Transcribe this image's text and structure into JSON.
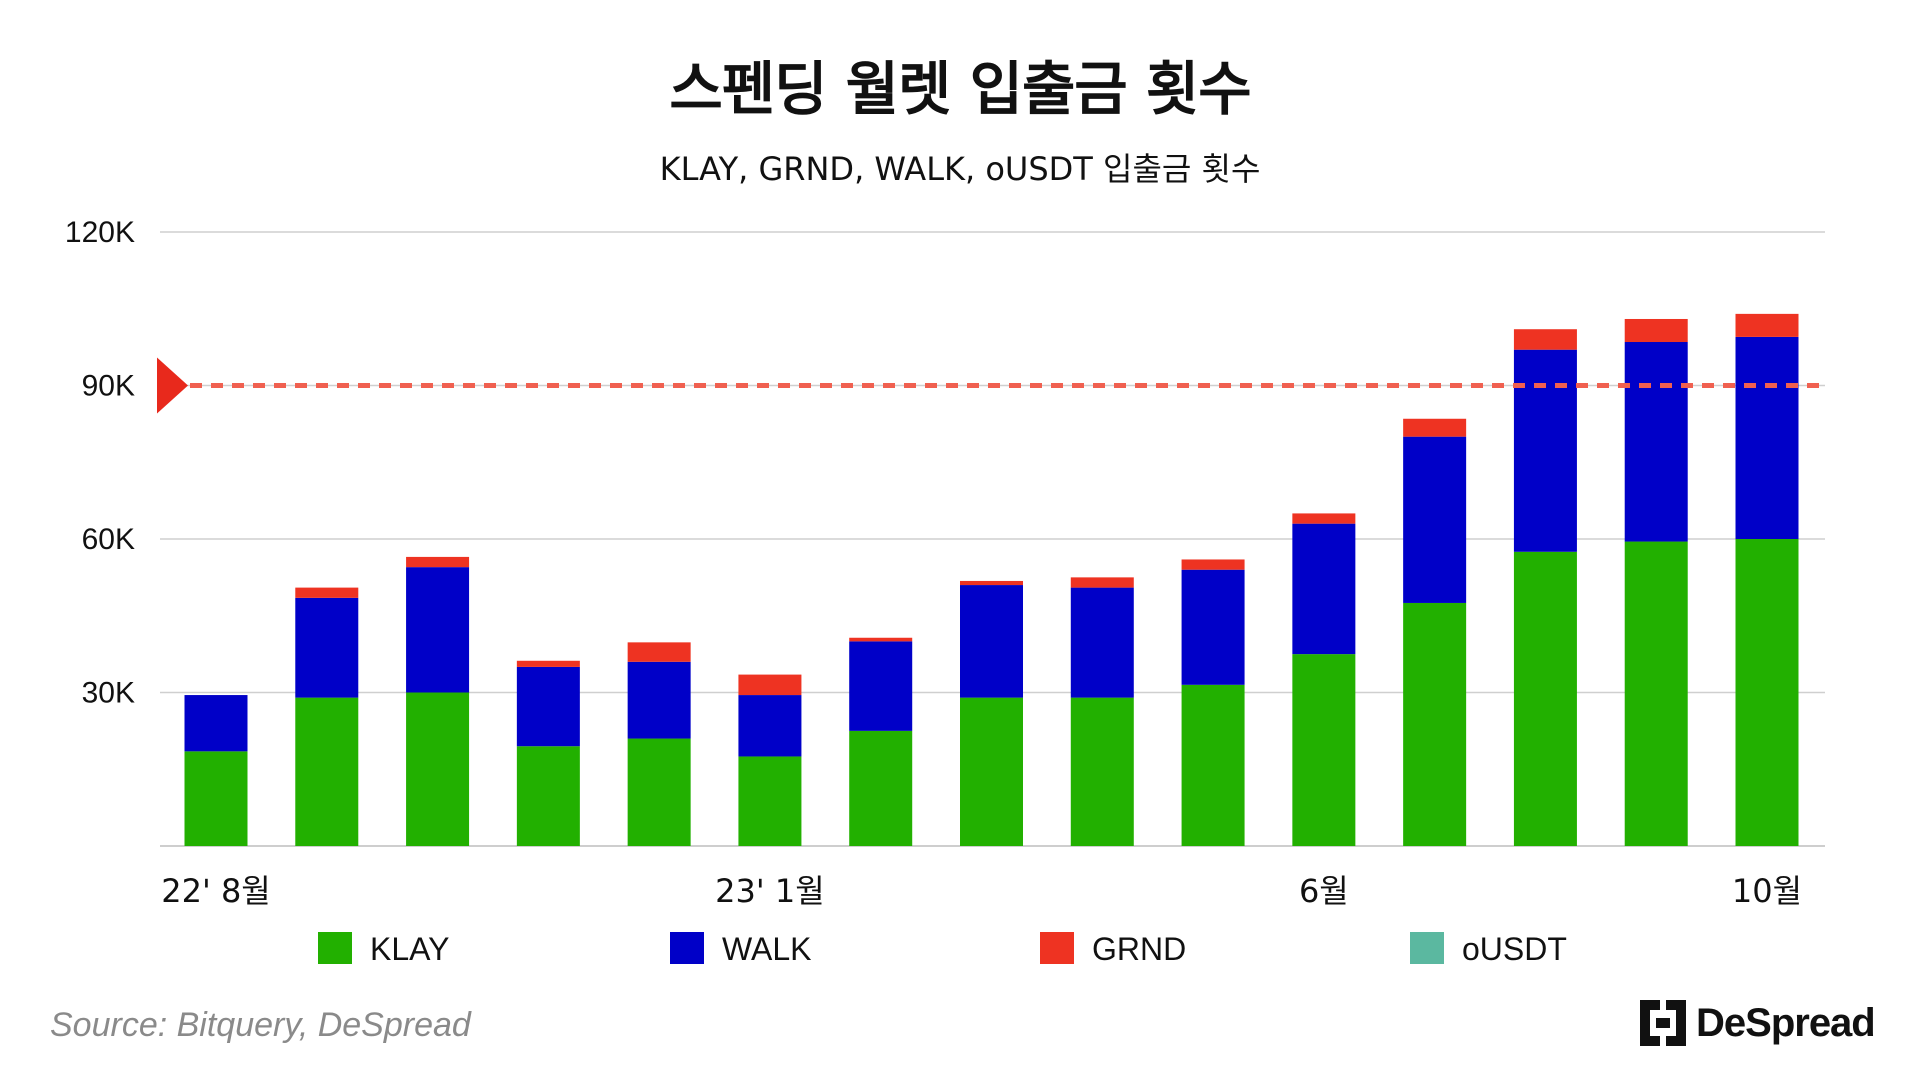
{
  "chart_data": {
    "type": "bar",
    "stacked": true,
    "title": "스펜딩 월렛 입출금 횟수",
    "subtitle": "KLAY, GRND, WALK, oUSDT 입출금 횟수",
    "categories": [
      "22' 8월",
      "",
      "",
      "",
      "",
      "23' 1월",
      "",
      "",
      "",
      "",
      "6월",
      "",
      "",
      "",
      "10월"
    ],
    "series": [
      {
        "name": "KLAY",
        "color": "#22b000",
        "values": [
          18500,
          29000,
          30000,
          19500,
          21000,
          17500,
          22500,
          29000,
          29000,
          31500,
          37500,
          47500,
          57500,
          59500,
          60000
        ]
      },
      {
        "name": "WALK",
        "color": "#0000c8",
        "values": [
          11000,
          19500,
          24500,
          15500,
          15000,
          12000,
          17500,
          22000,
          21500,
          22500,
          25500,
          32500,
          39500,
          39000,
          39500
        ]
      },
      {
        "name": "GRND",
        "color": "#ee3322",
        "values": [
          0,
          2000,
          2000,
          1200,
          3800,
          4000,
          700,
          800,
          2000,
          2000,
          2000,
          3500,
          4000,
          4500,
          4500
        ]
      },
      {
        "name": "oUSDT",
        "color": "#5bb8a0",
        "values": [
          0,
          0,
          0,
          0,
          0,
          0,
          0,
          0,
          0,
          0,
          0,
          0,
          0,
          0,
          0
        ]
      }
    ],
    "ylim": [
      0,
      120000
    ],
    "yticks": [
      30000,
      60000,
      90000,
      120000
    ],
    "ytick_labels": [
      "30K",
      "60K",
      "90K",
      "120K"
    ],
    "reference_line": {
      "value": 90000,
      "color": "#f06050",
      "style": "dashed"
    },
    "grid": true,
    "legend_position": "bottom"
  },
  "footer": {
    "source": "Source: Bitquery, DeSpread",
    "brand": "DeSpread"
  }
}
